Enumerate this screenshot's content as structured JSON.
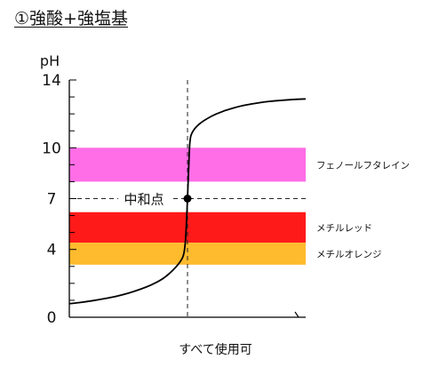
{
  "title": "①強酸+強塩基",
  "chart_data": {
    "type": "line",
    "title": "①強酸+強塩基",
    "xlabel": "すべて使用可",
    "ylabel": "pH",
    "ylim": [
      0,
      14
    ],
    "yticks": [
      0,
      4,
      7,
      10,
      14
    ],
    "grid": false,
    "series": [
      {
        "name": "",
        "x": [
          0,
          0.05,
          0.1,
          0.15,
          0.2,
          0.25,
          0.3,
          0.35,
          0.4,
          0.45,
          0.48,
          0.49,
          0.495,
          0.5,
          0.505,
          0.51,
          0.52,
          0.55,
          0.6,
          0.65,
          0.7,
          0.75,
          0.8,
          0.85,
          0.9,
          0.95,
          1.0
        ],
        "y": [
          0.8,
          0.88,
          0.98,
          1.1,
          1.24,
          1.42,
          1.65,
          1.93,
          2.32,
          2.95,
          3.55,
          4.3,
          5.4,
          7.0,
          8.8,
          10.3,
          10.9,
          11.4,
          11.85,
          12.15,
          12.37,
          12.53,
          12.65,
          12.74,
          12.8,
          12.85,
          12.88
        ]
      }
    ],
    "equivalence_point": {
      "x": 0.5,
      "y": 7,
      "label": "中和点"
    },
    "indicators": [
      {
        "name": "フェノールフタレイン",
        "range": [
          8,
          10
        ],
        "color": "#ff6ee6"
      },
      {
        "name": "メチルレッド",
        "range": [
          4.4,
          6.2
        ],
        "color": "#ff1a1a"
      },
      {
        "name": "メチルオレンジ",
        "range": [
          3.1,
          4.4
        ],
        "color": "#ffbb2e"
      }
    ]
  }
}
